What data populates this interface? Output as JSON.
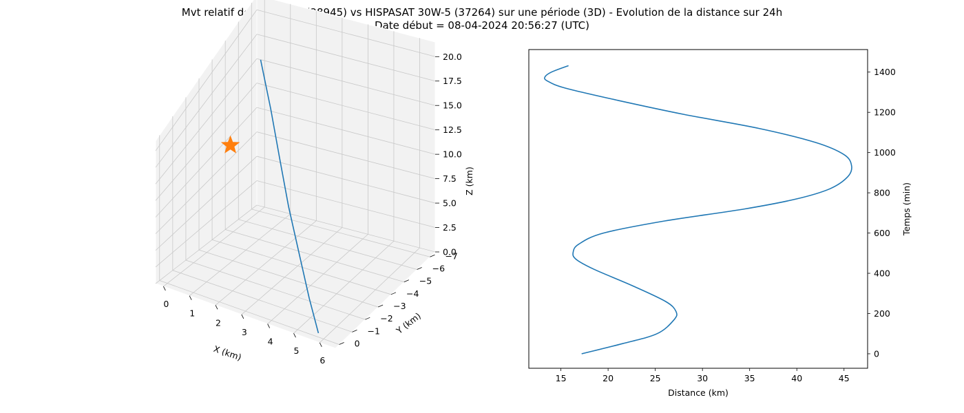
{
  "title_line1": "Mvt relatif de SPAINSAT (28945) vs HISPASAT 30W-5 (37264) sur une période (3D) - Evolution de la distance sur 24h",
  "title_line2": "Date début = 08-04-2024 20:56:27 (UTC)",
  "colors": {
    "series": "#1f77b4",
    "marker": "#ff7f0e",
    "pane": "#f2f2f2",
    "grid": "#c8c8c8"
  },
  "chart_data": [
    {
      "type": "line3d",
      "xlabel": "X (km)",
      "ylabel": "Y (km)",
      "zlabel": "Z (km)",
      "x_ticks": [
        "0",
        "1",
        "2",
        "3",
        "4",
        "5",
        "6"
      ],
      "y_ticks": [
        "0",
        "−1",
        "−2",
        "−3",
        "−4",
        "−5",
        "−6",
        "−7"
      ],
      "z_ticks": [
        "0.0",
        "2.5",
        "5.0",
        "7.5",
        "10.0",
        "12.5",
        "15.0",
        "17.5",
        "20.0"
      ],
      "xlim": [
        -0.3,
        6.6
      ],
      "ylim": [
        -7.4,
        0.3
      ],
      "zlim": [
        0,
        21.5
      ],
      "series": [
        {
          "points": [
            {
              "x": 0.0,
              "y": -7.1,
              "z": 15.6
            },
            {
              "x": 1.0,
              "y": -5.9,
              "z": 13.2
            },
            {
              "x": 2.0,
              "y": -4.6,
              "z": 10.8
            },
            {
              "x": 3.0,
              "y": -3.3,
              "z": 8.3
            },
            {
              "x": 4.0,
              "y": -2.1,
              "z": 5.7
            },
            {
              "x": 5.0,
              "y": -0.9,
              "z": 2.9
            },
            {
              "x": 5.8,
              "y": 0.0,
              "z": 0.6
            }
          ]
        }
      ],
      "marker": {
        "shape": "star",
        "x": 0.1,
        "y": -4.6,
        "z": 10.6
      }
    },
    {
      "type": "line",
      "xlabel": "Distance (km)",
      "ylabel": "Temps (min)",
      "x_ticks": [
        "15",
        "20",
        "25",
        "30",
        "35",
        "40",
        "45"
      ],
      "y_ticks": [
        "0",
        "200",
        "400",
        "600",
        "800",
        "1000",
        "1200",
        "1400"
      ],
      "xlim": [
        11.6,
        47.5
      ],
      "ylim": [
        -72,
        1512
      ],
      "series": [
        {
          "points": [
            {
              "x": 17.2,
              "y": 0
            },
            {
              "x": 21.5,
              "y": 50
            },
            {
              "x": 25.2,
              "y": 100
            },
            {
              "x": 27.0,
              "y": 170
            },
            {
              "x": 27.2,
              "y": 210
            },
            {
              "x": 26.1,
              "y": 260
            },
            {
              "x": 22.5,
              "y": 340
            },
            {
              "x": 18.5,
              "y": 420
            },
            {
              "x": 16.6,
              "y": 470
            },
            {
              "x": 16.3,
              "y": 505
            },
            {
              "x": 16.9,
              "y": 545
            },
            {
              "x": 19.5,
              "y": 600
            },
            {
              "x": 26.0,
              "y": 660
            },
            {
              "x": 34.5,
              "y": 720
            },
            {
              "x": 40.0,
              "y": 770
            },
            {
              "x": 43.5,
              "y": 820
            },
            {
              "x": 45.4,
              "y": 880
            },
            {
              "x": 45.8,
              "y": 935
            },
            {
              "x": 45.0,
              "y": 990
            },
            {
              "x": 42.0,
              "y": 1050
            },
            {
              "x": 36.0,
              "y": 1120
            },
            {
              "x": 28.0,
              "y": 1190
            },
            {
              "x": 21.0,
              "y": 1260
            },
            {
              "x": 15.5,
              "y": 1320
            },
            {
              "x": 13.6,
              "y": 1355
            },
            {
              "x": 13.3,
              "y": 1375
            },
            {
              "x": 14.0,
              "y": 1400
            },
            {
              "x": 15.8,
              "y": 1432
            }
          ]
        }
      ]
    }
  ]
}
